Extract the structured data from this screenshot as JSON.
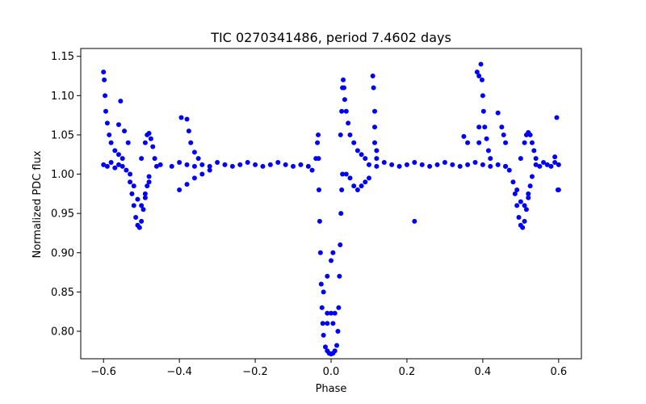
{
  "chart_data": {
    "type": "scatter",
    "title": "TIC 0270341486, period 7.4602 days",
    "xlabel": "Phase",
    "ylabel": "Normalized PDC flux",
    "xlim": [
      -0.66,
      0.66
    ],
    "ylim": [
      0.765,
      1.16
    ],
    "x_ticks": [
      -0.6,
      -0.4,
      -0.2,
      0.0,
      0.2,
      0.4,
      0.6
    ],
    "x_tick_labels": [
      "−0.6",
      "−0.4",
      "−0.2",
      "0.0",
      "0.2",
      "0.4",
      "0.6"
    ],
    "y_ticks": [
      0.8,
      0.85,
      0.9,
      0.95,
      1.0,
      1.05,
      1.1,
      1.15
    ],
    "y_tick_labels": [
      "0.80",
      "0.85",
      "0.90",
      "0.95",
      "1.00",
      "1.05",
      "1.10",
      "1.15"
    ],
    "grid": false,
    "marker_color": "#0000ff",
    "series": [
      {
        "points": [
          [
            -0.6,
            1.13
          ],
          [
            -0.598,
            1.12
          ],
          [
            -0.596,
            1.1
          ],
          [
            -0.594,
            1.08
          ],
          [
            -0.59,
            1.065
          ],
          [
            -0.585,
            1.05
          ],
          [
            -0.58,
            1.04
          ],
          [
            -0.57,
            1.03
          ],
          [
            -0.56,
            1.025
          ],
          [
            -0.55,
            1.02
          ],
          [
            -0.6,
            1.012
          ],
          [
            -0.59,
            1.01
          ],
          [
            -0.58,
            1.015
          ],
          [
            -0.57,
            1.008
          ],
          [
            -0.56,
            1.012
          ],
          [
            -0.55,
            1.01
          ],
          [
            -0.54,
            1.005
          ],
          [
            -0.53,
            0.99
          ],
          [
            -0.525,
            0.975
          ],
          [
            -0.52,
            0.96
          ],
          [
            -0.515,
            0.945
          ],
          [
            -0.51,
            0.935
          ],
          [
            -0.505,
            0.932
          ],
          [
            -0.5,
            0.94
          ],
          [
            -0.495,
            0.955
          ],
          [
            -0.49,
            0.97
          ],
          [
            -0.485,
            0.985
          ],
          [
            -0.48,
            0.997
          ],
          [
            -0.53,
            1.0
          ],
          [
            -0.52,
            0.985
          ],
          [
            -0.51,
            0.968
          ],
          [
            -0.5,
            0.96
          ],
          [
            -0.49,
            0.975
          ],
          [
            -0.48,
            0.99
          ],
          [
            -0.5,
            1.02
          ],
          [
            -0.49,
            1.04
          ],
          [
            -0.485,
            1.05
          ],
          [
            -0.48,
            1.052
          ],
          [
            -0.475,
            1.045
          ],
          [
            -0.47,
            1.035
          ],
          [
            -0.465,
            1.02
          ],
          [
            -0.46,
            1.01
          ],
          [
            -0.555,
            1.093
          ],
          [
            -0.56,
            1.063
          ],
          [
            -0.545,
            1.055
          ],
          [
            -0.535,
            1.04
          ],
          [
            -0.45,
            1.012
          ],
          [
            -0.42,
            1.01
          ],
          [
            -0.4,
            1.015
          ],
          [
            -0.38,
            1.012
          ],
          [
            -0.36,
            1.01
          ],
          [
            -0.34,
            1.012
          ],
          [
            -0.32,
            1.01
          ],
          [
            -0.3,
            1.015
          ],
          [
            -0.28,
            1.012
          ],
          [
            -0.26,
            1.01
          ],
          [
            -0.24,
            1.012
          ],
          [
            -0.22,
            1.015
          ],
          [
            -0.2,
            1.012
          ],
          [
            -0.18,
            1.01
          ],
          [
            -0.16,
            1.012
          ],
          [
            -0.14,
            1.015
          ],
          [
            -0.12,
            1.012
          ],
          [
            -0.1,
            1.01
          ],
          [
            -0.08,
            1.012
          ],
          [
            -0.06,
            1.01
          ],
          [
            -0.05,
            1.005
          ],
          [
            -0.4,
            0.98
          ],
          [
            -0.38,
            0.987
          ],
          [
            -0.36,
            0.995
          ],
          [
            -0.34,
            1.0
          ],
          [
            -0.32,
            1.005
          ],
          [
            -0.395,
            1.072
          ],
          [
            -0.38,
            1.07
          ],
          [
            -0.375,
            1.055
          ],
          [
            -0.37,
            1.04
          ],
          [
            -0.36,
            1.028
          ],
          [
            -0.35,
            1.02
          ],
          [
            -0.04,
            1.02
          ],
          [
            -0.036,
            1.04
          ],
          [
            -0.034,
            1.05
          ],
          [
            -0.033,
            1.02
          ],
          [
            -0.032,
            0.98
          ],
          [
            -0.03,
            0.94
          ],
          [
            -0.028,
            0.9
          ],
          [
            -0.026,
            0.86
          ],
          [
            -0.024,
            0.83
          ],
          [
            -0.022,
            0.81
          ],
          [
            -0.02,
            0.795
          ],
          [
            -0.015,
            0.78
          ],
          [
            -0.01,
            0.775
          ],
          [
            -0.005,
            0.772
          ],
          [
            0.0,
            0.771
          ],
          [
            0.005,
            0.772
          ],
          [
            0.01,
            0.775
          ],
          [
            0.015,
            0.782
          ],
          [
            0.018,
            0.8
          ],
          [
            0.02,
            0.83
          ],
          [
            0.022,
            0.87
          ],
          [
            0.024,
            0.91
          ],
          [
            0.026,
            0.95
          ],
          [
            0.028,
            0.98
          ],
          [
            0.03,
            1.0
          ],
          [
            -0.01,
            0.823
          ],
          [
            0.0,
            0.823
          ],
          [
            0.01,
            0.823
          ],
          [
            -0.01,
            0.81
          ],
          [
            0.005,
            0.81
          ],
          [
            -0.02,
            0.85
          ],
          [
            -0.01,
            0.87
          ],
          [
            0.0,
            0.89
          ],
          [
            0.005,
            0.9
          ],
          [
            0.025,
            1.05
          ],
          [
            0.028,
            1.08
          ],
          [
            0.03,
            1.11
          ],
          [
            0.032,
            1.12
          ],
          [
            0.034,
            1.11
          ],
          [
            0.036,
            1.095
          ],
          [
            0.04,
            1.08
          ],
          [
            0.045,
            1.065
          ],
          [
            0.05,
            1.05
          ],
          [
            0.06,
            1.04
          ],
          [
            0.07,
            1.03
          ],
          [
            0.08,
            1.025
          ],
          [
            0.09,
            1.02
          ],
          [
            0.04,
            1.0
          ],
          [
            0.05,
            0.995
          ],
          [
            0.06,
            0.985
          ],
          [
            0.07,
            0.98
          ],
          [
            0.08,
            0.985
          ],
          [
            0.09,
            0.99
          ],
          [
            0.1,
            0.995
          ],
          [
            0.11,
            1.125
          ],
          [
            0.112,
            1.11
          ],
          [
            0.115,
            1.08
          ],
          [
            0.115,
            1.06
          ],
          [
            0.115,
            1.04
          ],
          [
            0.12,
            1.03
          ],
          [
            0.12,
            1.02
          ],
          [
            0.1,
            1.012
          ],
          [
            0.12,
            1.01
          ],
          [
            0.14,
            1.015
          ],
          [
            0.16,
            1.012
          ],
          [
            0.18,
            1.01
          ],
          [
            0.2,
            1.012
          ],
          [
            0.22,
            1.015
          ],
          [
            0.24,
            1.012
          ],
          [
            0.26,
            1.01
          ],
          [
            0.28,
            1.012
          ],
          [
            0.3,
            1.015
          ],
          [
            0.32,
            1.012
          ],
          [
            0.34,
            1.01
          ],
          [
            0.36,
            1.012
          ],
          [
            0.38,
            1.015
          ],
          [
            0.4,
            1.012
          ],
          [
            0.42,
            1.01
          ],
          [
            0.44,
            1.012
          ],
          [
            0.46,
            1.01
          ],
          [
            0.22,
            0.94
          ],
          [
            0.35,
            1.048
          ],
          [
            0.36,
            1.04
          ],
          [
            0.385,
            1.13
          ],
          [
            0.39,
            1.125
          ],
          [
            0.395,
            1.14
          ],
          [
            0.398,
            1.12
          ],
          [
            0.4,
            1.1
          ],
          [
            0.402,
            1.08
          ],
          [
            0.405,
            1.06
          ],
          [
            0.41,
            1.045
          ],
          [
            0.415,
            1.03
          ],
          [
            0.42,
            1.02
          ],
          [
            0.39,
            1.06
          ],
          [
            0.39,
            1.04
          ],
          [
            0.44,
            1.078
          ],
          [
            0.45,
            1.06
          ],
          [
            0.455,
            1.05
          ],
          [
            0.46,
            1.04
          ],
          [
            0.46,
            1.01
          ],
          [
            0.47,
            1.005
          ],
          [
            0.48,
            0.99
          ],
          [
            0.485,
            0.975
          ],
          [
            0.49,
            0.96
          ],
          [
            0.495,
            0.945
          ],
          [
            0.5,
            0.935
          ],
          [
            0.505,
            0.932
          ],
          [
            0.51,
            0.94
          ],
          [
            0.515,
            0.955
          ],
          [
            0.52,
            0.97
          ],
          [
            0.525,
            0.985
          ],
          [
            0.53,
            0.997
          ],
          [
            0.49,
            0.98
          ],
          [
            0.5,
            0.965
          ],
          [
            0.51,
            0.96
          ],
          [
            0.52,
            0.975
          ],
          [
            0.5,
            1.02
          ],
          [
            0.51,
            1.04
          ],
          [
            0.515,
            1.05
          ],
          [
            0.52,
            1.053
          ],
          [
            0.525,
            1.05
          ],
          [
            0.53,
            1.04
          ],
          [
            0.535,
            1.03
          ],
          [
            0.54,
            1.02
          ],
          [
            0.54,
            1.012
          ],
          [
            0.55,
            1.01
          ],
          [
            0.56,
            1.015
          ],
          [
            0.57,
            1.012
          ],
          [
            0.58,
            1.01
          ],
          [
            0.59,
            1.015
          ],
          [
            0.6,
            1.012
          ],
          [
            0.59,
            1.022
          ],
          [
            0.595,
            1.072
          ],
          [
            0.598,
            0.98
          ],
          [
            0.6,
            0.98
          ]
        ]
      }
    ]
  }
}
